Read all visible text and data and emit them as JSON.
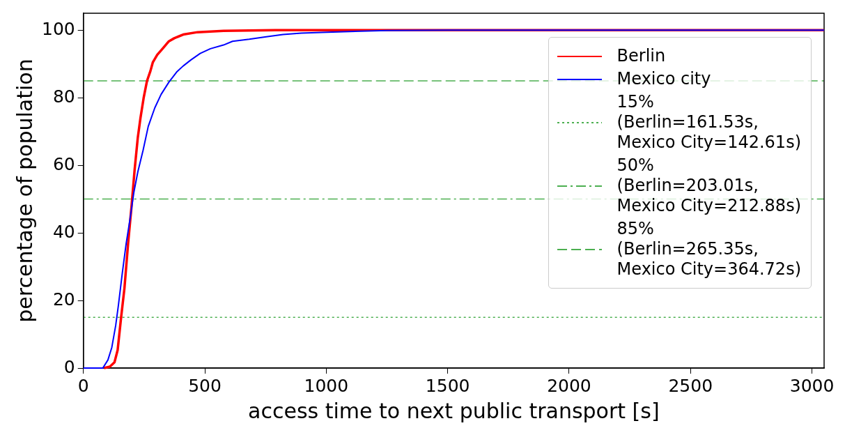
{
  "chart_data": {
    "type": "line",
    "xlabel": "access time to next public transport [s]",
    "ylabel": "percentage of population",
    "xlim": [
      0,
      3050
    ],
    "xticks": [
      0,
      500,
      1000,
      1500,
      2000,
      2500,
      3000
    ],
    "ylim": [
      0,
      105
    ],
    "yticks": [
      0,
      20,
      40,
      60,
      80,
      100
    ],
    "grid": false,
    "legend": "right",
    "line_style": "solid",
    "marker": "none",
    "series": [
      {
        "name": "Berlin",
        "color": "#ff0000",
        "x": [
          85,
          109,
          128,
          141,
          155,
          169,
          184,
          198,
          211,
          224,
          235,
          248,
          262,
          276,
          286,
          304,
          326,
          352,
          374,
          411,
          470,
          577,
          790,
          3050
        ],
        "values": [
          0,
          0.4,
          1.7,
          5.3,
          14.8,
          23.6,
          36.8,
          47.7,
          58.7,
          68.2,
          74,
          79.9,
          85,
          87.9,
          90.5,
          92.7,
          94.5,
          96.7,
          97.6,
          98.7,
          99.4,
          99.8,
          100,
          100
        ]
      },
      {
        "name": "Mexico city",
        "color": "#0000ff",
        "x": [
          0,
          80,
          101,
          117,
          133,
          144,
          160,
          176,
          192,
          208,
          224,
          246,
          267,
          294,
          320,
          352,
          384,
          411,
          443,
          481,
          523,
          577,
          614,
          683,
          748,
          822,
          897,
          1004,
          1250,
          1500,
          3050
        ],
        "values": [
          0,
          0,
          2.4,
          6.1,
          12.6,
          18.5,
          28,
          36.8,
          44.1,
          52.1,
          58,
          64.5,
          71.5,
          77,
          81,
          84.6,
          87.6,
          89.4,
          91.2,
          93.1,
          94.5,
          95.6,
          96.7,
          97.3,
          98,
          98.7,
          99.1,
          99.4,
          99.9,
          100,
          100
        ]
      }
    ],
    "ref_lines": [
      {
        "axis": "y",
        "value": 15,
        "label": "15%\n(Berlin=161.53s,\nMexico City=142.61s)",
        "color": "#4caf50",
        "line_style": "dotted"
      },
      {
        "axis": "y",
        "value": 50,
        "label": "50%\n(Berlin=203.01s,\nMexico City=212.88s)",
        "color": "#4caf50",
        "line_style": "dashdot"
      },
      {
        "axis": "y",
        "value": 85,
        "label": "85%\n(Berlin=265.35s,\nMexico City=364.72s)",
        "color": "#4caf50",
        "line_style": "dashed"
      }
    ]
  }
}
